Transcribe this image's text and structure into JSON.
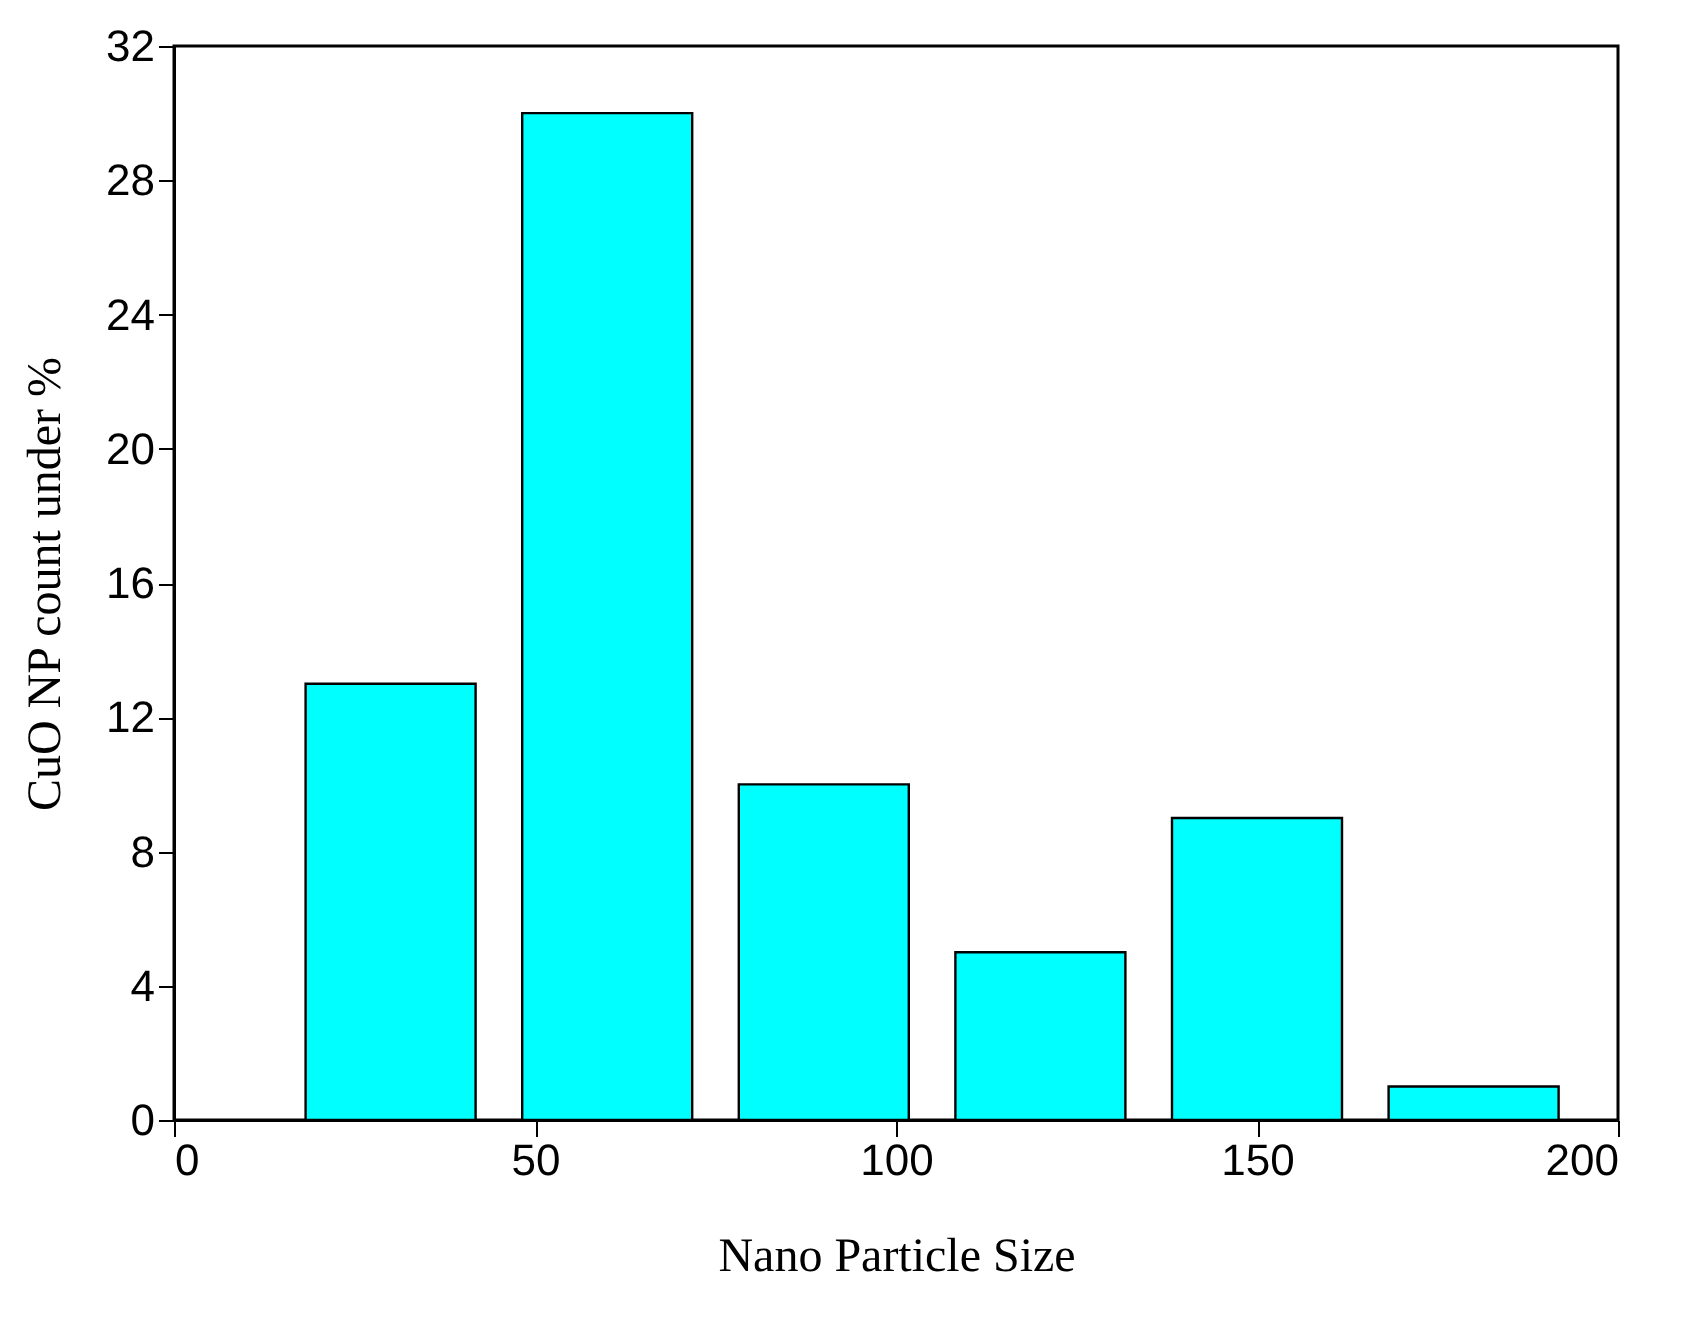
{
  "chart_data": {
    "type": "bar",
    "xlabel": "Nano Particle Size",
    "ylabel": "CuO NP count under %",
    "x": [
      30,
      60,
      90,
      120,
      150,
      180
    ],
    "values": [
      13,
      30,
      10,
      5,
      9,
      1
    ],
    "color": "#00ffff",
    "xlim": [
      0,
      200
    ],
    "xticks": [
      0,
      50,
      100,
      150,
      200
    ],
    "ylim": [
      0,
      32
    ],
    "yticks": [
      0,
      4,
      8,
      12,
      16,
      20,
      24,
      28,
      32
    ],
    "grid": false
  }
}
